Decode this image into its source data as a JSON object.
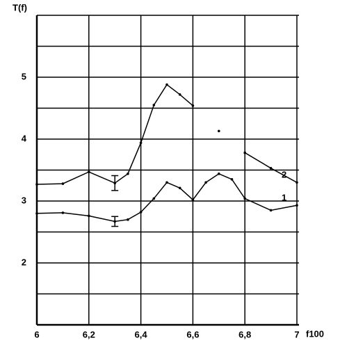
{
  "chart_data": {
    "type": "line",
    "ylabel": "T(f)",
    "xlabel": "f100",
    "x": [
      6,
      6.1,
      6.2,
      6.3,
      6.35,
      6.4,
      6.45,
      6.5,
      6.55,
      6.6,
      6.65,
      6.7,
      6.75,
      6.8,
      6.9,
      7
    ],
    "series": [
      {
        "name": "2",
        "color": "#000000",
        "values": [
          3.27,
          3.28,
          3.47,
          3.29,
          3.44,
          3.94,
          4.55,
          4.88,
          4.72,
          4.54,
          null,
          4.13,
          null,
          3.78,
          3.53,
          3.3
        ]
      },
      {
        "name": "1",
        "color": "#000000",
        "values": [
          2.8,
          2.81,
          2.76,
          2.67,
          2.7,
          2.82,
          3.04,
          3.3,
          3.21,
          3.02,
          3.3,
          3.44,
          3.35,
          3.04,
          2.85,
          2.93
        ]
      }
    ],
    "error_bars": [
      {
        "x": 6.3,
        "y": 3.29,
        "error": 0.12
      },
      {
        "x": 6.3,
        "y": 2.67,
        "error": 0.08
      }
    ],
    "xlim": [
      6,
      7
    ],
    "ylim": [
      1,
      6
    ],
    "xticks": [
      6,
      {
        "value": 6.2,
        "label": "6,2"
      },
      {
        "value": 6.4,
        "label": "6,4"
      },
      {
        "value": 6.6,
        "label": "6,6"
      },
      {
        "value": 6.8,
        "label": "6,8"
      },
      7
    ],
    "yticks": [
      2,
      3,
      4,
      5
    ],
    "ygrid": [
      1.5,
      2,
      2.5,
      3,
      3.5,
      4,
      4.5,
      5,
      5.5,
      6
    ],
    "grid": true
  }
}
